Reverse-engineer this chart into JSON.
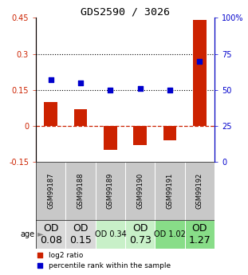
{
  "title": "GDS2590 / 3026",
  "samples": [
    "GSM99187",
    "GSM99188",
    "GSM99189",
    "GSM99190",
    "GSM99191",
    "GSM99192"
  ],
  "log2_ratio": [
    0.1,
    0.07,
    -0.1,
    -0.08,
    -0.06,
    0.44
  ],
  "percentile_rank": [
    57,
    55,
    50,
    51,
    50,
    70
  ],
  "ylim_left": [
    -0.15,
    0.45
  ],
  "ylim_right": [
    0,
    100
  ],
  "yticks_left": [
    -0.15,
    0,
    0.15,
    0.3,
    0.45
  ],
  "yticks_right": [
    0,
    25,
    50,
    75,
    100
  ],
  "ytick_labels_left": [
    "-0.15",
    "0",
    "0.15",
    "0.3",
    "0.45"
  ],
  "ytick_labels_right": [
    "0",
    "25",
    "50",
    "75",
    "100%"
  ],
  "hlines": [
    0.15,
    0.3
  ],
  "bar_color": "#cc2200",
  "dot_color": "#0000cc",
  "zero_line_color": "#cc2200",
  "dotted_line_color": "#000000",
  "age_labels": [
    "OD\n0.08",
    "OD\n0.15",
    "OD 0.34",
    "OD\n0.73",
    "OD 1.02",
    "OD\n1.27"
  ],
  "age_label_fontsize": [
    9,
    9,
    7,
    9,
    7,
    9
  ],
  "age_bg_colors": [
    "#d8d8d8",
    "#d8d8d8",
    "#c8f0c8",
    "#c8f0c8",
    "#88dd88",
    "#88dd88"
  ],
  "sample_bg_color": "#c8c8c8",
  "sample_border_color": "#ffffff",
  "legend_red": "log2 ratio",
  "legend_blue": "percentile rank within the sample"
}
